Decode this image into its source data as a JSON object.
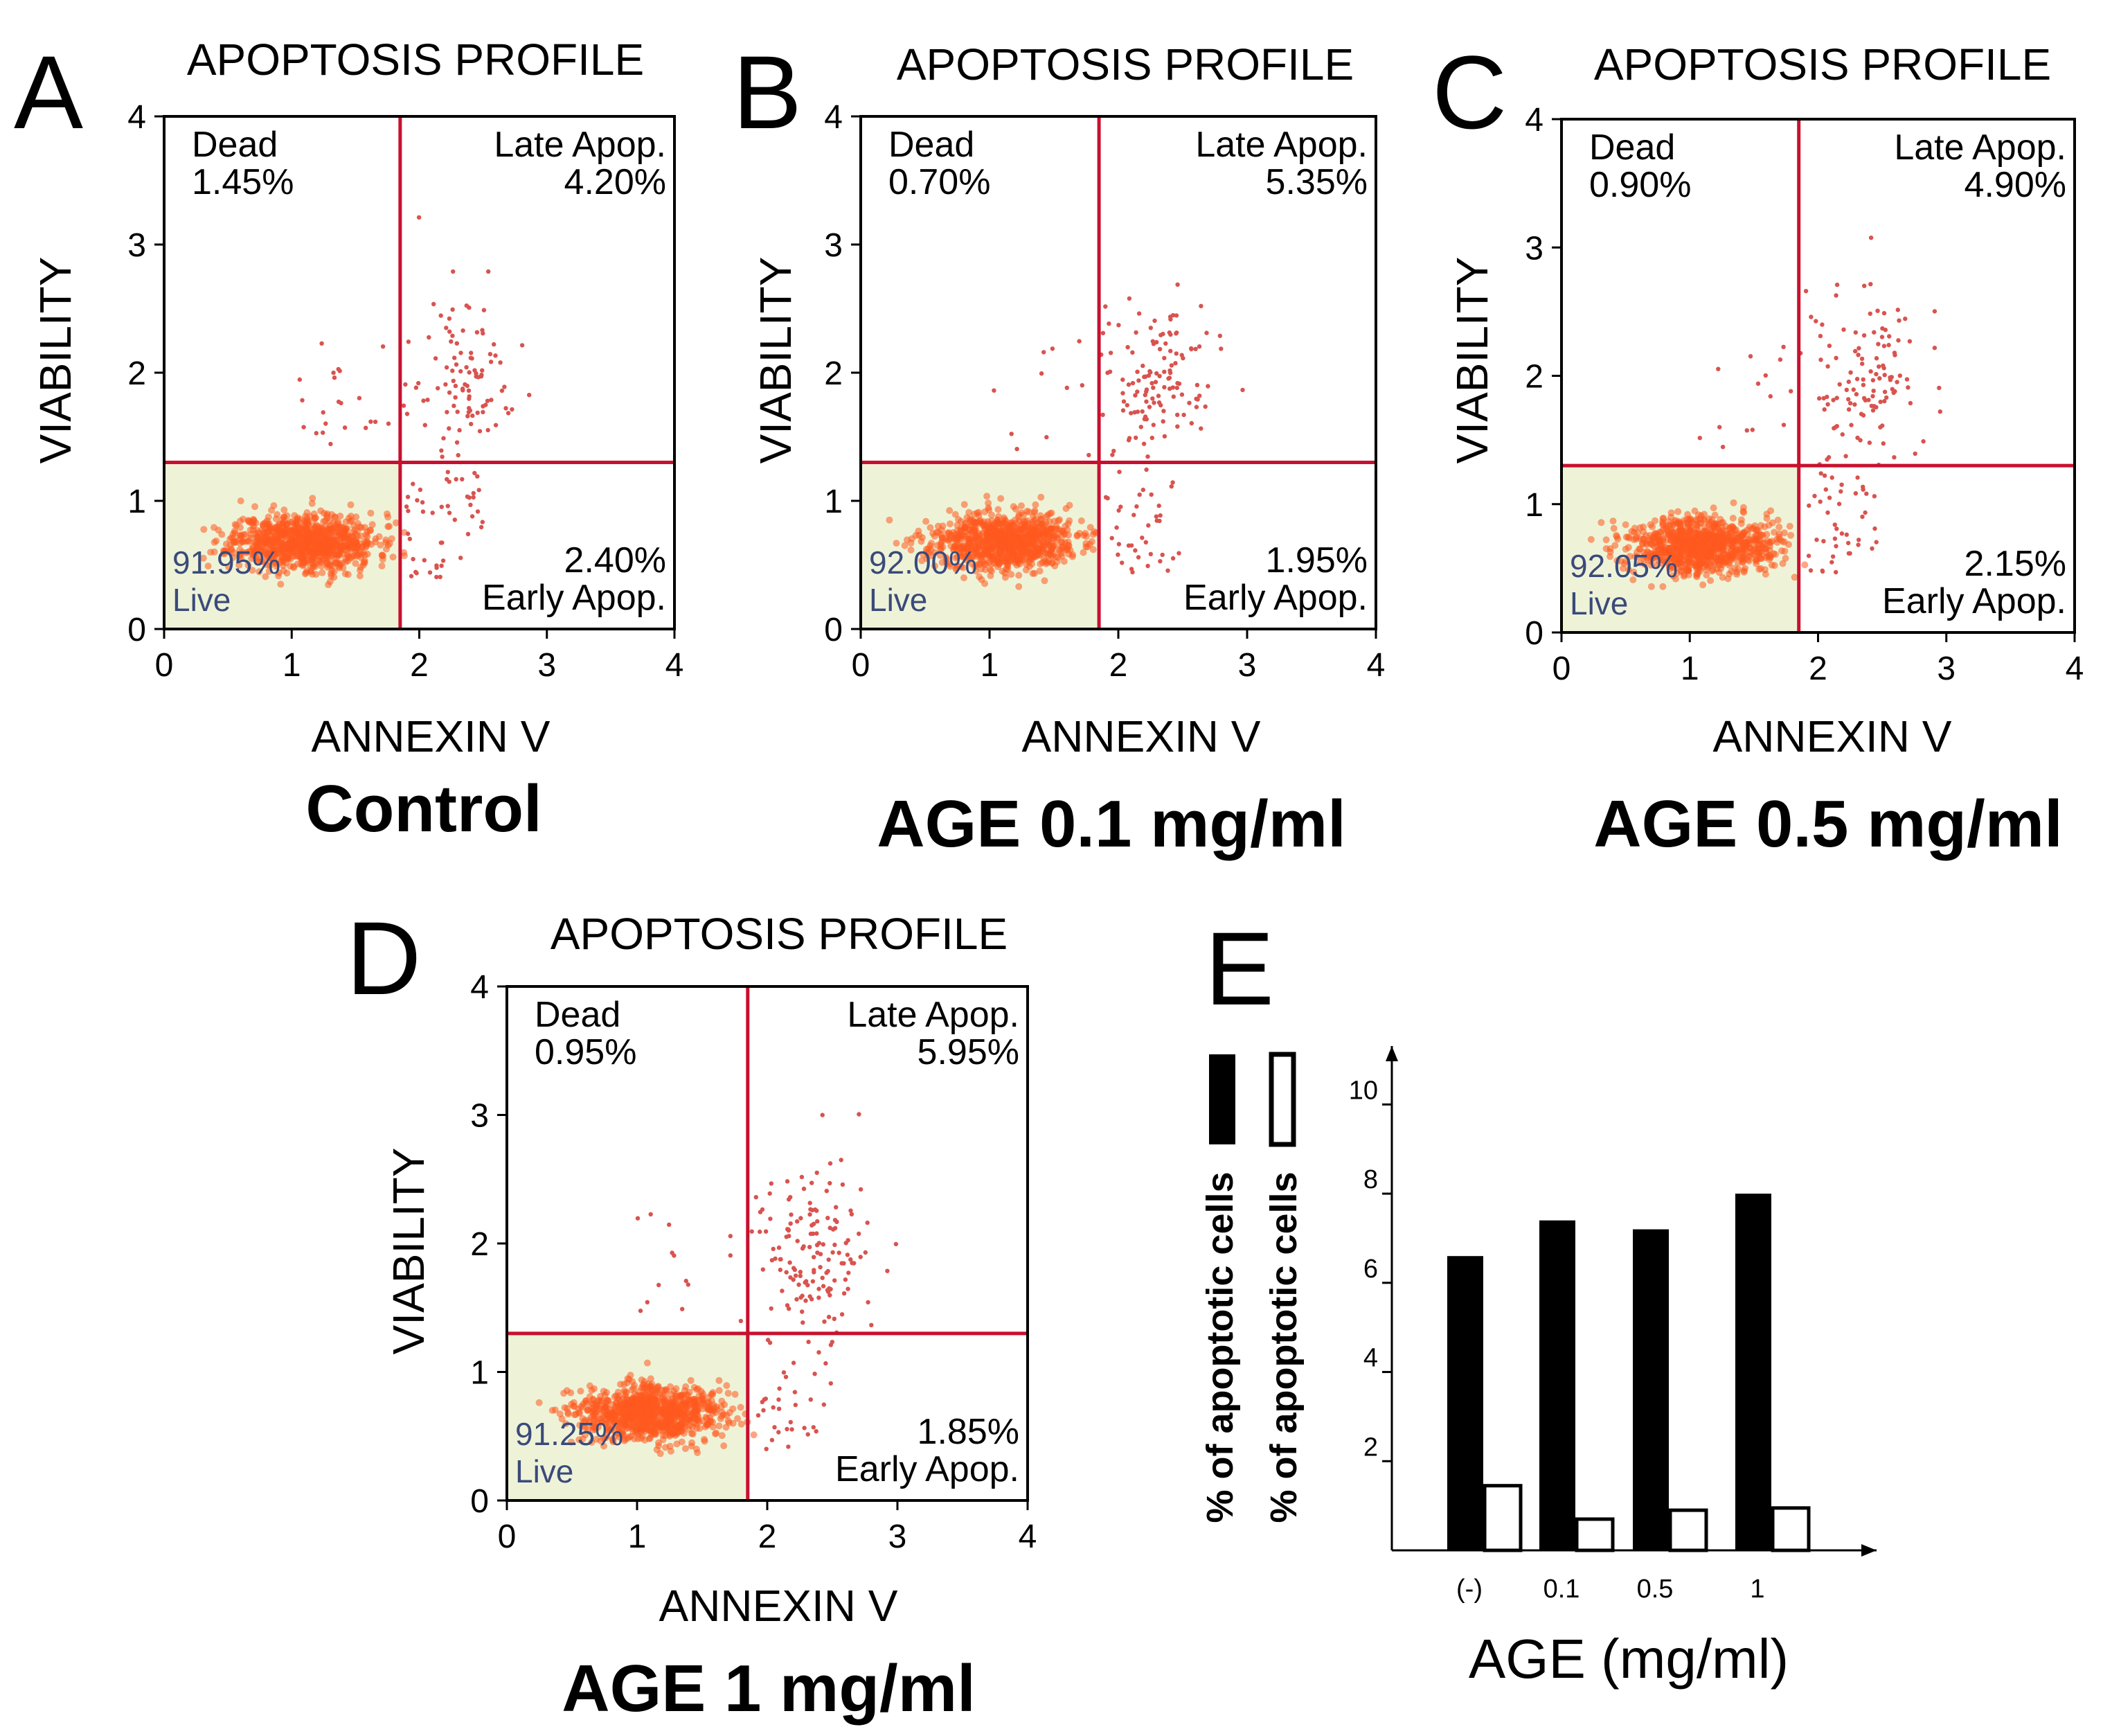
{
  "panels": [
    {
      "label": "A",
      "title": "APOPTOSIS PROFILE",
      "xlabel": "ANNEXIN V",
      "ylabel": "VIABILITY",
      "condition": "Control",
      "dead": "1.45%",
      "late": "4.20%",
      "early": "2.40%",
      "live": "91.95%"
    },
    {
      "label": "B",
      "title": "APOPTOSIS PROFILE",
      "xlabel": "ANNEXIN V",
      "ylabel": "VIABILITY",
      "condition": "AGE 0.1 mg/ml",
      "dead": "0.70%",
      "late": "5.35%",
      "early": "1.95%",
      "live": "92.00%"
    },
    {
      "label": "C",
      "title": "APOPTOSIS PROFILE",
      "xlabel": "ANNEXIN V",
      "ylabel": "VIABILITY",
      "condition": "AGE 0.5 mg/ml",
      "dead": "0.90%",
      "late": "4.90%",
      "early": "2.15%",
      "live": "92.05%"
    },
    {
      "label": "D",
      "title": "APOPTOSIS PROFILE",
      "xlabel": "ANNEXIN V",
      "ylabel": "VIABILITY",
      "condition": "AGE 1 mg/ml",
      "dead": "0.95%",
      "late": "5.95%",
      "early": "1.85%",
      "live": "91.25%"
    }
  ],
  "quadrant_names": {
    "dead": "Dead",
    "late": "Late Apop.",
    "early": "Early Apop.",
    "live": "Live"
  },
  "panel_e": {
    "label": "E",
    "legend_label_filled": "% of apoptotic cells",
    "legend_label_open": "% of apoptotic cells",
    "xlabel": "AGE (mg/ml)"
  },
  "colors": {
    "gate": "#c8102e",
    "live_fill": "#eef3d8",
    "events": "#ff5a1f",
    "scatter": "#d9534f"
  },
  "chart_data": [
    {
      "type": "scatter",
      "panel": "A",
      "xlim": [
        0,
        4
      ],
      "ylim": [
        0,
        4
      ],
      "x_gate": 1.85,
      "y_gate": 1.3,
      "xticks": [
        "0",
        "1",
        "2",
        "3",
        "4"
      ],
      "yticks": [
        "0",
        "1",
        "2",
        "3",
        "4"
      ],
      "quadrants": {
        "dead": 1.45,
        "late_apoptotic": 4.2,
        "early_apoptotic": 2.4,
        "live": 91.95
      }
    },
    {
      "type": "scatter",
      "panel": "B",
      "xlim": [
        0,
        4
      ],
      "ylim": [
        0,
        4
      ],
      "x_gate": 1.85,
      "y_gate": 1.3,
      "xticks": [
        "0",
        "1",
        "2",
        "3",
        "4"
      ],
      "yticks": [
        "0",
        "1",
        "2",
        "3",
        "4"
      ],
      "quadrants": {
        "dead": 0.7,
        "late_apoptotic": 5.35,
        "early_apoptotic": 1.95,
        "live": 92.0
      }
    },
    {
      "type": "scatter",
      "panel": "C",
      "xlim": [
        0,
        4
      ],
      "ylim": [
        0,
        4
      ],
      "x_gate": 1.85,
      "y_gate": 1.3,
      "xticks": [
        "0",
        "1",
        "2",
        "3",
        "4"
      ],
      "yticks": [
        "0",
        "1",
        "2",
        "3",
        "4"
      ],
      "quadrants": {
        "dead": 0.9,
        "late_apoptotic": 4.9,
        "early_apoptotic": 2.15,
        "live": 92.05
      }
    },
    {
      "type": "scatter",
      "panel": "D",
      "xlim": [
        0,
        4
      ],
      "ylim": [
        0,
        4
      ],
      "x_gate": 1.85,
      "y_gate": 1.3,
      "xticks": [
        "0",
        "1",
        "2",
        "3",
        "4"
      ],
      "yticks": [
        "0",
        "1",
        "2",
        "3",
        "4"
      ],
      "quadrants": {
        "dead": 0.95,
        "late_apoptotic": 5.95,
        "early_apoptotic": 1.85,
        "live": 91.25
      }
    },
    {
      "type": "bar",
      "panel": "E",
      "categories": [
        "(-)",
        "0.1",
        "0.5",
        "1"
      ],
      "series": [
        {
          "name": "% of apoptotic cells (filled)",
          "fill": "#000000",
          "values": [
            6.6,
            7.4,
            7.2,
            8.0
          ]
        },
        {
          "name": "% of apoptotic cells (open)",
          "fill": "#ffffff",
          "values": [
            1.45,
            0.7,
            0.9,
            0.95
          ]
        }
      ],
      "yticks": [
        "2",
        "4",
        "6",
        "8",
        "10"
      ],
      "ylim": [
        0,
        11
      ],
      "xlabel": "AGE (mg/ml)",
      "ylabel": "% of apoptotic cells"
    }
  ]
}
